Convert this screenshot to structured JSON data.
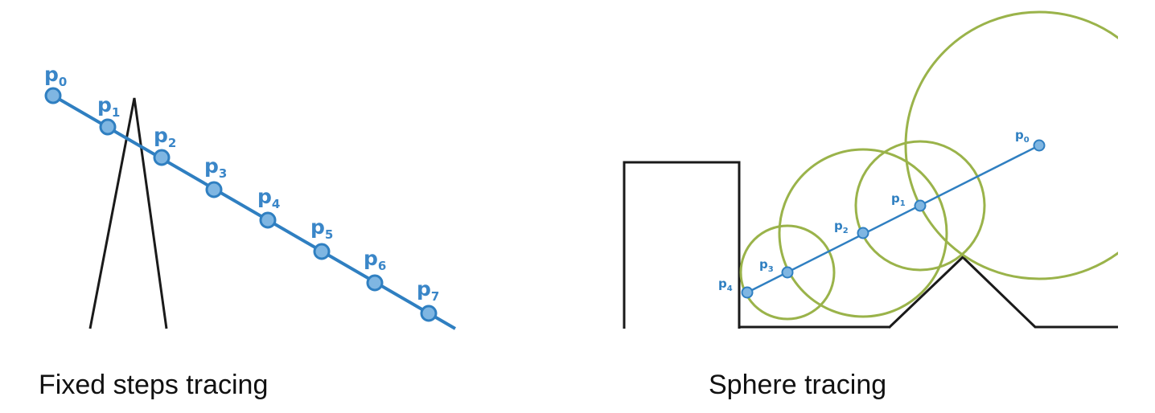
{
  "fixed_steps": {
    "caption": "Fixed steps tracing",
    "points": [
      {
        "base": "p",
        "sub": "0"
      },
      {
        "base": "p",
        "sub": "1"
      },
      {
        "base": "p",
        "sub": "2"
      },
      {
        "base": "p",
        "sub": "3"
      },
      {
        "base": "p",
        "sub": "4"
      },
      {
        "base": "p",
        "sub": "5"
      },
      {
        "base": "p",
        "sub": "6"
      },
      {
        "base": "p",
        "sub": "7"
      }
    ]
  },
  "sphere_tracing": {
    "caption": "Sphere tracing",
    "points": [
      {
        "base": "p",
        "sub": "0"
      },
      {
        "base": "p",
        "sub": "1"
      },
      {
        "base": "p",
        "sub": "2"
      },
      {
        "base": "p",
        "sub": "3"
      },
      {
        "base": "p",
        "sub": "4"
      }
    ]
  },
  "colors": {
    "ray": "#2f7fc1",
    "point_fill": "#7fb6e2",
    "sphere": "#9ab34a",
    "geometry": "#1a1a1a"
  }
}
